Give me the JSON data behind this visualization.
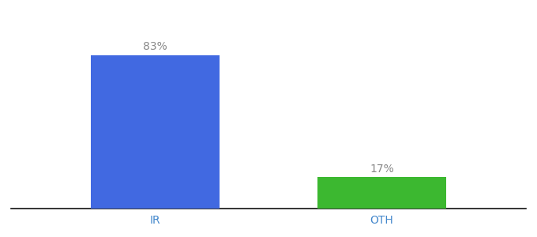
{
  "categories": [
    "IR",
    "OTH"
  ],
  "values": [
    83,
    17
  ],
  "bar_colors": [
    "#4169e1",
    "#3cb830"
  ],
  "value_labels": [
    "83%",
    "17%"
  ],
  "background_color": "#ffffff",
  "bar_width": 0.25,
  "label_fontsize": 10,
  "tick_fontsize": 10,
  "label_color": "#888888",
  "tick_color": "#4488cc",
  "axis_line_color": "#111111",
  "ylim": [
    0,
    100
  ],
  "xlim": [
    0.0,
    1.0
  ],
  "x_positions": [
    0.28,
    0.72
  ]
}
